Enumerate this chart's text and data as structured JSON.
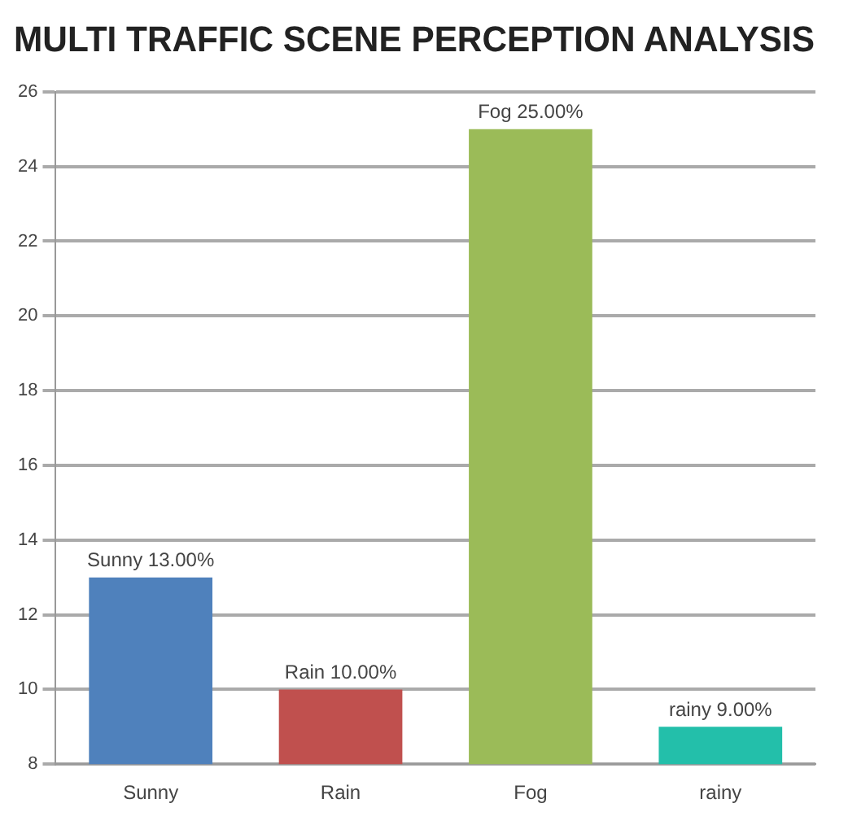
{
  "chart_data": {
    "type": "bar",
    "title": "MULTI TRAFFIC SCENE PERCEPTION ANALYSIS",
    "categories": [
      "Sunny",
      "Rain",
      "Fog",
      "rainy"
    ],
    "values": [
      13,
      10,
      25,
      9
    ],
    "colors": [
      "#4f81bc",
      "#c0504e",
      "#9bbb58",
      "#23bfaa"
    ],
    "value_labels": [
      "Sunny 13.00%",
      "Rain 10.00%",
      "Fog 25.00%",
      "rainy 9.00%"
    ],
    "ylim": [
      8,
      26
    ],
    "yticks": [
      8,
      10,
      12,
      14,
      16,
      18,
      20,
      22,
      24,
      26
    ],
    "grid": "y"
  }
}
